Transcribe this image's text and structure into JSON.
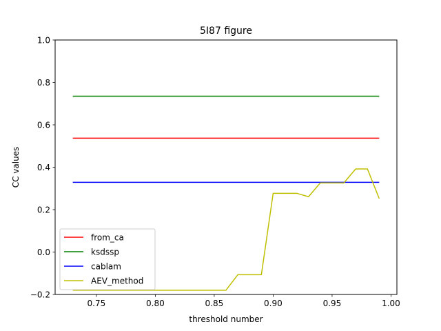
{
  "chart_data": {
    "type": "line",
    "title": "5I87 figure",
    "xlabel": "threshold number",
    "ylabel": "CC values",
    "xlim": [
      0.715,
      1.005
    ],
    "ylim": [
      -0.2,
      1.0
    ],
    "xticks": [
      0.75,
      0.8,
      0.85,
      0.9,
      0.95,
      1.0
    ],
    "xtick_labels": [
      "0.75",
      "0.80",
      "0.85",
      "0.90",
      "0.95",
      "1.00"
    ],
    "yticks": [
      -0.2,
      0.0,
      0.2,
      0.4,
      0.6,
      0.8,
      1.0
    ],
    "ytick_labels": [
      "−0.2",
      "0.0",
      "0.2",
      "0.4",
      "0.6",
      "0.8",
      "1.0"
    ],
    "grid": false,
    "legend_position": "lower-left",
    "x": [
      0.73,
      0.74,
      0.75,
      0.76,
      0.77,
      0.78,
      0.79,
      0.8,
      0.81,
      0.82,
      0.83,
      0.84,
      0.85,
      0.86,
      0.87,
      0.88,
      0.89,
      0.9,
      0.91,
      0.92,
      0.93,
      0.94,
      0.95,
      0.96,
      0.97,
      0.98,
      0.99
    ],
    "series": [
      {
        "name": "from_ca",
        "color": "#ff0000",
        "values": [
          0.537,
          0.537,
          0.537,
          0.537,
          0.537,
          0.537,
          0.537,
          0.537,
          0.537,
          0.537,
          0.537,
          0.537,
          0.537,
          0.537,
          0.537,
          0.537,
          0.537,
          0.537,
          0.537,
          0.537,
          0.537,
          0.537,
          0.537,
          0.537,
          0.537,
          0.537,
          0.537
        ]
      },
      {
        "name": "ksdssp",
        "color": "#008000",
        "values": [
          0.735,
          0.735,
          0.735,
          0.735,
          0.735,
          0.735,
          0.735,
          0.735,
          0.735,
          0.735,
          0.735,
          0.735,
          0.735,
          0.735,
          0.735,
          0.735,
          0.735,
          0.735,
          0.735,
          0.735,
          0.735,
          0.735,
          0.735,
          0.735,
          0.735,
          0.735,
          0.735
        ]
      },
      {
        "name": "cablam",
        "color": "#0000ff",
        "values": [
          0.329,
          0.329,
          0.329,
          0.329,
          0.329,
          0.329,
          0.329,
          0.329,
          0.329,
          0.329,
          0.329,
          0.329,
          0.329,
          0.329,
          0.329,
          0.329,
          0.329,
          0.329,
          0.329,
          0.329,
          0.329,
          0.329,
          0.329,
          0.329,
          0.329,
          0.329,
          0.329
        ]
      },
      {
        "name": "AEV_method",
        "color": "#bfbf00",
        "values": [
          -0.18,
          -0.18,
          -0.18,
          -0.18,
          -0.18,
          -0.18,
          -0.18,
          -0.18,
          -0.18,
          -0.18,
          -0.18,
          -0.18,
          -0.18,
          -0.18,
          -0.107,
          -0.107,
          -0.107,
          0.277,
          0.277,
          0.277,
          0.261,
          0.326,
          0.326,
          0.326,
          0.392,
          0.392,
          0.252
        ]
      }
    ]
  }
}
